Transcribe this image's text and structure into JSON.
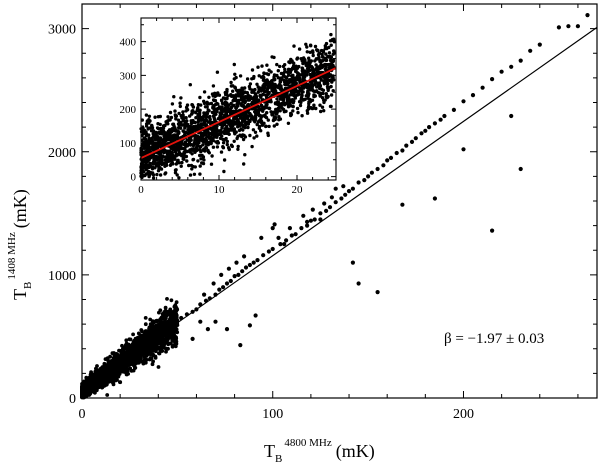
{
  "chart_data": [
    {
      "type": "scatter",
      "name_hint": "main",
      "xlim": [
        0,
        270
      ],
      "ylim": [
        0,
        3200
      ],
      "xticks": [
        0,
        100,
        200
      ],
      "yticks": [
        0,
        1000,
        2000,
        3000
      ],
      "xlabel": {
        "main": "T",
        "sub": "B",
        "sup": "4800 MHz",
        "unit": "(mK)"
      },
      "ylabel": {
        "main": "T",
        "sub": "B",
        "sup": "1408 MHz",
        "unit": "(mK)"
      },
      "annotation": "β = −1.97 ± 0.03",
      "fit_line": {
        "x": [
          0,
          270
        ],
        "y": [
          65,
          3010
        ],
        "color": "#000000"
      },
      "cloud": {
        "x_range": [
          0,
          50
        ],
        "slope": 11.0,
        "intercept": 60,
        "count": 2600
      },
      "points": [
        [
          52,
          650
        ],
        [
          55,
          680
        ],
        [
          58,
          700
        ],
        [
          60,
          720
        ],
        [
          62,
          760
        ],
        [
          65,
          790
        ],
        [
          67,
          810
        ],
        [
          70,
          840
        ],
        [
          72,
          880
        ],
        [
          74,
          900
        ],
        [
          76,
          930
        ],
        [
          78,
          950
        ],
        [
          80,
          990
        ],
        [
          82,
          1000
        ],
        [
          84,
          1030
        ],
        [
          86,
          1060
        ],
        [
          88,
          1080
        ],
        [
          90,
          1100
        ],
        [
          92,
          1120
        ],
        [
          95,
          1160
        ],
        [
          98,
          1190
        ],
        [
          100,
          1210
        ],
        [
          104,
          1250
        ],
        [
          107,
          1280
        ],
        [
          110,
          1320
        ],
        [
          112,
          1330
        ],
        [
          115,
          1380
        ],
        [
          118,
          1400
        ],
        [
          120,
          1440
        ],
        [
          122,
          1450
        ],
        [
          125,
          1500
        ],
        [
          128,
          1520
        ],
        [
          130,
          1550
        ],
        [
          133,
          1590
        ],
        [
          136,
          1620
        ],
        [
          138,
          1650
        ],
        [
          140,
          1680
        ],
        [
          142,
          1700
        ],
        [
          145,
          1750
        ],
        [
          148,
          1770
        ],
        [
          150,
          1800
        ],
        [
          152,
          1830
        ],
        [
          155,
          1860
        ],
        [
          158,
          1890
        ],
        [
          160,
          1930
        ],
        [
          162,
          1950
        ],
        [
          165,
          1990
        ],
        [
          168,
          2010
        ],
        [
          170,
          2050
        ],
        [
          173,
          2080
        ],
        [
          175,
          2110
        ],
        [
          178,
          2150
        ],
        [
          180,
          2170
        ],
        [
          182,
          2200
        ],
        [
          185,
          2230
        ],
        [
          188,
          2260
        ],
        [
          190,
          2290
        ],
        [
          195,
          2340
        ],
        [
          200,
          2410
        ],
        [
          205,
          2460
        ],
        [
          210,
          2520
        ],
        [
          215,
          2590
        ],
        [
          220,
          2650
        ],
        [
          225,
          2690
        ],
        [
          230,
          2740
        ],
        [
          235,
          2820
        ],
        [
          240,
          2870
        ],
        [
          250,
          3010
        ],
        [
          255,
          3020
        ],
        [
          260,
          3020
        ],
        [
          265,
          3110
        ],
        [
          83,
          430
        ],
        [
          88,
          590
        ],
        [
          91,
          670
        ],
        [
          100,
          1380
        ],
        [
          101,
          1410
        ],
        [
          106,
          1250
        ],
        [
          118,
          1430
        ],
        [
          125,
          1450
        ],
        [
          133,
          1700
        ],
        [
          142,
          1100
        ],
        [
          145,
          930
        ],
        [
          155,
          860
        ],
        [
          168,
          1570
        ],
        [
          185,
          1620
        ],
        [
          200,
          2020
        ],
        [
          215,
          1360
        ],
        [
          225,
          2290
        ],
        [
          230,
          1860
        ],
        [
          76,
          560
        ],
        [
          70,
          620
        ],
        [
          66,
          560
        ],
        [
          62,
          620
        ],
        [
          58,
          480
        ],
        [
          64,
          840
        ],
        [
          69,
          930
        ],
        [
          73,
          1000
        ],
        [
          77,
          1050
        ],
        [
          81,
          1100
        ],
        [
          85,
          1150
        ],
        [
          94,
          1300
        ],
        [
          103,
          1300
        ],
        [
          109,
          1380
        ],
        [
          116,
          1480
        ],
        [
          121,
          1530
        ],
        [
          127,
          1580
        ],
        [
          131,
          1630
        ],
        [
          137,
          1720
        ]
      ]
    },
    {
      "type": "scatter",
      "name_hint": "inset",
      "xlim": [
        0,
        25
      ],
      "ylim": [
        -10,
        470
      ],
      "xticks": [
        0,
        10,
        20
      ],
      "yticks": [
        0,
        100,
        200,
        300,
        400
      ],
      "fit_line": {
        "x": [
          0,
          25
        ],
        "y": [
          55,
          322
        ],
        "color": "#e3120b"
      },
      "cloud": {
        "x_range": [
          0,
          25
        ],
        "slope": 10.7,
        "intercept": 55,
        "spread": 45,
        "count": 2200
      }
    }
  ]
}
